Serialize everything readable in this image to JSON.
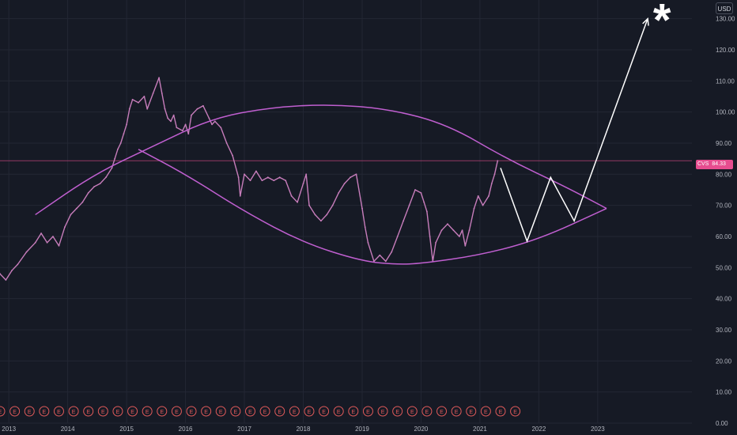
{
  "currency": "USD",
  "symbol_tag": {
    "symbol": "CVS",
    "price": "84.33"
  },
  "colors": {
    "background": "#161a25",
    "price_series": "#c77dbb",
    "channel_lines": "#c05fd0",
    "projection": "#ffffff",
    "last_price_line": "#e64d8f",
    "earnings_badge": "#e05a5a"
  },
  "earnings_marker": "E",
  "chart_data": {
    "type": "line",
    "title": "",
    "xlabel": "",
    "ylabel": "",
    "x_ticks": [
      "2013",
      "2014",
      "2015",
      "2016",
      "2017",
      "2018",
      "2019",
      "2020",
      "2021",
      "2022",
      "2023"
    ],
    "y_ticks": [
      "0.00",
      "10.00",
      "20.00",
      "30.00",
      "40.00",
      "50.00",
      "60.00",
      "70.00",
      "80.00",
      "90.00",
      "100.00",
      "110.00",
      "120.00",
      "130.00"
    ],
    "ylim": [
      0,
      136
    ],
    "xlim": [
      2012.85,
      2024.6
    ],
    "last_price": 84.33,
    "series": [
      {
        "values": [
          [
            2012.85,
            48
          ],
          [
            2012.95,
            46
          ],
          [
            2013.05,
            49
          ],
          [
            2013.15,
            51
          ],
          [
            2013.3,
            55
          ],
          [
            2013.45,
            58
          ],
          [
            2013.55,
            61
          ],
          [
            2013.65,
            58
          ],
          [
            2013.75,
            60
          ],
          [
            2013.85,
            57
          ],
          [
            2013.95,
            63
          ],
          [
            2014.05,
            67
          ],
          [
            2014.15,
            69
          ],
          [
            2014.25,
            71
          ],
          [
            2014.35,
            74
          ],
          [
            2014.45,
            76
          ],
          [
            2014.55,
            77
          ],
          [
            2014.65,
            79
          ],
          [
            2014.75,
            82
          ],
          [
            2014.8,
            85
          ],
          [
            2014.85,
            88
          ],
          [
            2014.9,
            90
          ],
          [
            2014.95,
            93
          ],
          [
            2015.0,
            96
          ],
          [
            2015.05,
            101
          ],
          [
            2015.1,
            104
          ],
          [
            2015.2,
            103
          ],
          [
            2015.3,
            105
          ],
          [
            2015.35,
            101
          ],
          [
            2015.45,
            106
          ],
          [
            2015.55,
            111
          ],
          [
            2015.6,
            106
          ],
          [
            2015.65,
            101
          ],
          [
            2015.7,
            98
          ],
          [
            2015.75,
            97
          ],
          [
            2015.8,
            99
          ],
          [
            2015.85,
            95
          ],
          [
            2015.95,
            94
          ],
          [
            2016.0,
            96
          ],
          [
            2016.05,
            93
          ],
          [
            2016.1,
            99
          ],
          [
            2016.2,
            101
          ],
          [
            2016.3,
            102
          ],
          [
            2016.4,
            98
          ],
          [
            2016.45,
            96
          ],
          [
            2016.5,
            97
          ],
          [
            2016.6,
            95
          ],
          [
            2016.7,
            90
          ],
          [
            2016.8,
            86
          ],
          [
            2016.9,
            79
          ],
          [
            2016.93,
            73
          ],
          [
            2017.0,
            80
          ],
          [
            2017.1,
            78
          ],
          [
            2017.2,
            81
          ],
          [
            2017.3,
            78
          ],
          [
            2017.4,
            79
          ],
          [
            2017.5,
            78
          ],
          [
            2017.6,
            79
          ],
          [
            2017.7,
            78
          ],
          [
            2017.8,
            73
          ],
          [
            2017.9,
            71
          ],
          [
            2018.0,
            77
          ],
          [
            2018.05,
            80
          ],
          [
            2018.1,
            70
          ],
          [
            2018.2,
            67
          ],
          [
            2018.3,
            65
          ],
          [
            2018.4,
            67
          ],
          [
            2018.5,
            70
          ],
          [
            2018.6,
            74
          ],
          [
            2018.7,
            77
          ],
          [
            2018.8,
            79
          ],
          [
            2018.9,
            80
          ],
          [
            2019.0,
            69
          ],
          [
            2019.05,
            63
          ],
          [
            2019.1,
            58
          ],
          [
            2019.2,
            52
          ],
          [
            2019.3,
            54
          ],
          [
            2019.4,
            52
          ],
          [
            2019.5,
            55
          ],
          [
            2019.6,
            60
          ],
          [
            2019.7,
            65
          ],
          [
            2019.8,
            70
          ],
          [
            2019.9,
            75
          ],
          [
            2020.0,
            74
          ],
          [
            2020.05,
            71
          ],
          [
            2020.1,
            68
          ],
          [
            2020.15,
            60
          ],
          [
            2020.2,
            52
          ],
          [
            2020.25,
            58
          ],
          [
            2020.35,
            62
          ],
          [
            2020.45,
            64
          ],
          [
            2020.55,
            62
          ],
          [
            2020.65,
            60
          ],
          [
            2020.7,
            62
          ],
          [
            2020.75,
            57
          ],
          [
            2020.82,
            62
          ],
          [
            2020.9,
            69
          ],
          [
            2020.97,
            73
          ],
          [
            2021.05,
            70
          ],
          [
            2021.15,
            73
          ],
          [
            2021.2,
            77
          ],
          [
            2021.25,
            80
          ],
          [
            2021.3,
            84.33
          ]
        ]
      }
    ],
    "annotations": {
      "upper_arc": [
        [
          2013.45,
          67
        ],
        [
          2014.45,
          80
        ],
        [
          2015.45,
          89
        ],
        [
          2016.45,
          98
        ],
        [
          2017.45,
          101.5
        ],
        [
          2018.45,
          102.5
        ],
        [
          2019.45,
          101
        ],
        [
          2020.45,
          96
        ],
        [
          2021.45,
          85
        ],
        [
          2022.45,
          76
        ],
        [
          2023.15,
          69
        ]
      ],
      "lower_arc": [
        [
          2015.2,
          88
        ],
        [
          2016.0,
          80
        ],
        [
          2017.0,
          68
        ],
        [
          2018.0,
          58
        ],
        [
          2019.0,
          52
        ],
        [
          2019.6,
          51
        ],
        [
          2020.0,
          51.3
        ],
        [
          2021.0,
          54
        ],
        [
          2022.0,
          59
        ],
        [
          2023.15,
          69
        ]
      ],
      "projection_path": [
        [
          2021.35,
          82
        ],
        [
          2021.8,
          58.5
        ],
        [
          2022.2,
          79
        ],
        [
          2022.6,
          65
        ],
        [
          2023.85,
          130
        ]
      ],
      "target_marker": "*",
      "earnings_events": [
        2012.85,
        2013.1,
        2013.35,
        2013.6,
        2013.85,
        2014.1,
        2014.35,
        2014.6,
        2014.85,
        2015.1,
        2015.35,
        2015.6,
        2015.85,
        2016.1,
        2016.35,
        2016.6,
        2016.85,
        2017.1,
        2017.35,
        2017.6,
        2017.85,
        2018.1,
        2018.35,
        2018.6,
        2018.85,
        2019.1,
        2019.35,
        2019.6,
        2019.85,
        2020.1,
        2020.35,
        2020.6,
        2020.85,
        2021.1,
        2021.35,
        2021.6
      ]
    }
  }
}
